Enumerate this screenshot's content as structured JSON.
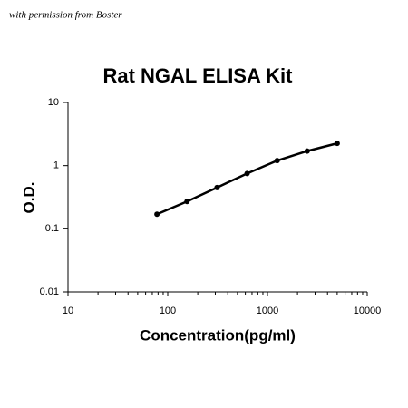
{
  "chart_data": {
    "type": "line",
    "note": "with permission from Boster",
    "title": "Rat NGAL ELISA Kit",
    "x_label": "Concentration(pg/ml)",
    "y_label": "O.D.",
    "x": [
      78,
      156,
      312,
      625,
      1250,
      2500,
      5000
    ],
    "values": [
      0.17,
      0.27,
      0.45,
      0.75,
      1.2,
      1.7,
      2.25
    ],
    "color": "#000000",
    "xscale": "log",
    "yscale": "log",
    "xlim": [
      10,
      10000
    ],
    "ylim": [
      0.01,
      10
    ],
    "xticks": [
      10,
      100,
      1000,
      10000
    ],
    "yticks": [
      0.01,
      0.1,
      1,
      10
    ],
    "grid": false
  }
}
